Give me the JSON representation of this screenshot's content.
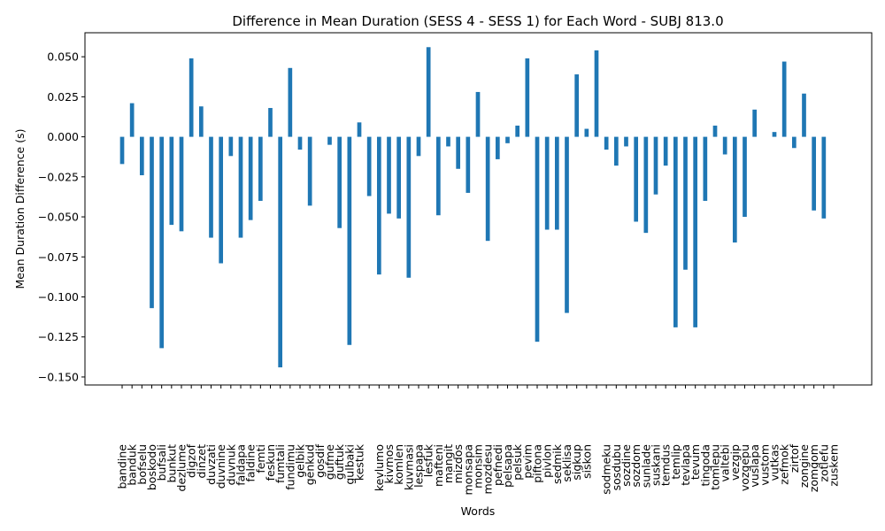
{
  "chart_data": {
    "type": "bar",
    "title": "Difference in Mean Duration (SESS 4 - SESS 1) for Each Word - SUBJ 813.0",
    "xlabel": "Words",
    "ylabel": "Mean Duration Difference (s)",
    "ylim": [
      -0.155,
      0.065
    ],
    "yticks": [
      0.05,
      0.025,
      0.0,
      -0.025,
      -0.05,
      -0.075,
      -0.1,
      -0.125,
      -0.15
    ],
    "ytick_labels": [
      "0.050",
      "0.025",
      "0.000",
      "−0.025",
      "−0.050",
      "−0.075",
      "−0.100",
      "−0.125",
      "−0.150"
    ],
    "grid": false,
    "bar_color": "#1f77b4",
    "categories": [
      "bandine",
      "banduk",
      "bofselu",
      "boskodo",
      "bufsali",
      "bunkut",
      "dezlume",
      "digzof",
      "dinzet",
      "duvzati",
      "duvnine",
      "duvnuk",
      "faldapa",
      "faldine",
      "femti",
      "feskun",
      "fumtali",
      "fundimu",
      "gelbik",
      "genkud",
      "gosdif",
      "gufme",
      "guftuk",
      "gulbaki",
      "kestuk",
      "",
      "kevlumo",
      "kivmos",
      "komlen",
      "kuvmasi",
      "lespapa",
      "lesfuk",
      "mafteni",
      "mangit",
      "mizdos",
      "monsapa",
      "monsim",
      "mozdesu",
      "pefnedi",
      "pelsapa",
      "pelsuk",
      "pevim",
      "piftona",
      "pivlon",
      "sedmik",
      "seklisa",
      "sigkup",
      "siskon",
      "",
      "sodmeku",
      "sosdubu",
      "sozdine",
      "sozdom",
      "sunlade",
      "suskani",
      "temdus",
      "temlip",
      "tevlapa",
      "tevum",
      "tingoda",
      "tomlepu",
      "valtebi",
      "vezgip",
      "vozgepu",
      "vuslapa",
      "vustom",
      "vutkas",
      "zefmok",
      "zirtof",
      "zongine",
      "zomgom",
      "zotlefu",
      "zuskem"
    ],
    "values": [
      -0.017,
      0.021,
      -0.024,
      -0.107,
      -0.132,
      -0.055,
      -0.059,
      0.049,
      0.019,
      -0.063,
      -0.079,
      -0.012,
      -0.063,
      -0.052,
      -0.04,
      0.018,
      -0.144,
      0.043,
      -0.008,
      -0.043,
      0.0,
      -0.005,
      -0.057,
      -0.13,
      0.009,
      -0.037,
      -0.086,
      -0.048,
      -0.051,
      -0.088,
      -0.012,
      0.056,
      -0.049,
      -0.006,
      -0.02,
      -0.035,
      0.028,
      -0.065,
      -0.014,
      -0.004,
      0.007,
      0.049,
      -0.128,
      -0.058,
      -0.058,
      -0.11,
      0.039,
      0.005,
      0.054,
      -0.008,
      -0.018,
      -0.006,
      -0.053,
      -0.06,
      -0.036,
      -0.018,
      -0.119,
      -0.083,
      -0.119,
      -0.04,
      0.007,
      -0.011,
      -0.066,
      -0.05,
      0.017,
      0.0,
      0.003,
      0.047,
      -0.007,
      0.027,
      -0.046,
      -0.051,
      0.0
    ]
  }
}
